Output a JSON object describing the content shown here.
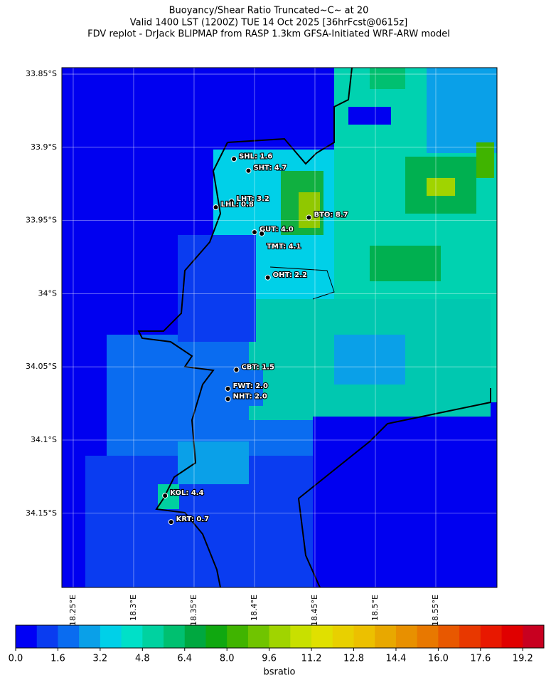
{
  "chart_data": {
    "type": "map",
    "title": [
      "Buoyancy/Shear Ratio Truncated~C~    at 20",
      "Valid 1400 LST (1200Z) TUE 14 Oct 2025 [36hrFcst@0615z]",
      "FDV replot - DrJack BLIPMAP from RASP 1.3km GFSA-Initiated WRF-ARW model"
    ],
    "xlim": [
      18.2406,
      18.6006
    ],
    "ylim": [
      -34.2007,
      -33.8456
    ],
    "xticks": [
      {
        "value": 18.25,
        "label": "18.25°E"
      },
      {
        "value": 18.3,
        "label": "18.3°E"
      },
      {
        "value": 18.35,
        "label": "18.35°E"
      },
      {
        "value": 18.4,
        "label": "18.4°E"
      },
      {
        "value": 18.45,
        "label": "18.45°E"
      },
      {
        "value": 18.5,
        "label": "18.5°E"
      },
      {
        "value": 18.55,
        "label": "18.55°E"
      }
    ],
    "yticks": [
      {
        "value": -33.85,
        "label": "33.85°S"
      },
      {
        "value": -33.9,
        "label": "33.9°S"
      },
      {
        "value": -33.95,
        "label": "33.95°S"
      },
      {
        "value": -34.0,
        "label": "34°S"
      },
      {
        "value": -34.05,
        "label": "34.05°S"
      },
      {
        "value": -34.1,
        "label": "34.1°S"
      },
      {
        "value": -34.15,
        "label": "34.15°S"
      }
    ],
    "grid": true,
    "stations": [
      {
        "label": "SHL: 1.6",
        "lon": 18.383,
        "lat": -33.908
      },
      {
        "label": "SHT: 4.7",
        "lon": 18.395,
        "lat": -33.916
      },
      {
        "label": "LHT: 3.2",
        "lon": 18.381,
        "lat": -33.937
      },
      {
        "label": "LHL: 0.8",
        "lon": 18.368,
        "lat": -33.941
      },
      {
        "label": "BTO: 8.7",
        "lon": 18.445,
        "lat": -33.948
      },
      {
        "label": "GUT: 4.0",
        "lon": 18.4,
        "lat": -33.958
      },
      {
        "label": "TMT: 4.1",
        "lon": 18.406,
        "lat": -33.959
      },
      {
        "label": "OHT: 2.2",
        "lon": 18.411,
        "lat": -33.989
      },
      {
        "label": "CBT: 1.5",
        "lon": 18.385,
        "lat": -34.052
      },
      {
        "label": "FWT: 2.0",
        "lon": 18.378,
        "lat": -34.065
      },
      {
        "label": "NHT: 2.0",
        "lon": 18.378,
        "lat": -34.072
      },
      {
        "label": "KOL: 4.4",
        "lon": 18.326,
        "lat": -34.138
      },
      {
        "label": "KRT: 0.7",
        "lon": 18.331,
        "lat": -34.156
      }
    ],
    "colorbar": {
      "label": "bsratio",
      "lim": [
        0,
        20
      ],
      "colors": [
        "#0000f5",
        "#0a3cf0",
        "#0a6cf0",
        "#0aa0e8",
        "#00d0e8",
        "#00e0c8",
        "#00d2a0",
        "#00c070",
        "#00a840",
        "#10a810",
        "#40b400",
        "#70c400",
        "#a0d400",
        "#c8e000",
        "#e0e000",
        "#e8d000",
        "#ecc000",
        "#e8a800",
        "#e89000",
        "#e87800",
        "#e85800",
        "#e83800",
        "#e81800",
        "#e00000",
        "#c80020"
      ],
      "ticks": [
        {
          "value": 0,
          "label": "0.0"
        },
        1.6,
        3.2,
        4.8,
        6.4,
        {
          "value": 8,
          "label": "8.0"
        },
        9.6,
        11.2,
        12.8,
        14.4,
        {
          "value": 16,
          "label": "16.0"
        },
        17.6,
        19.2
      ]
    }
  }
}
